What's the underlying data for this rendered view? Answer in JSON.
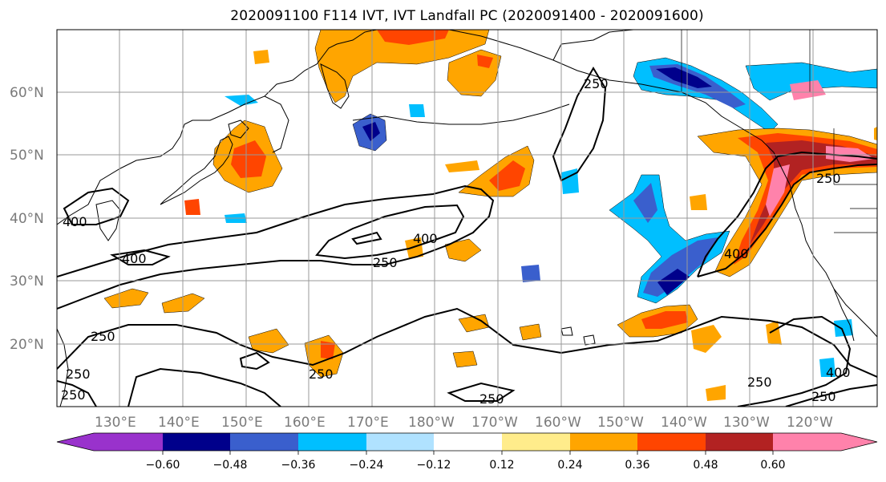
{
  "title": "2020091100 F114 IVT, IVT Landfall PC (2020091400 - 2020091600)",
  "latitude_labels": [
    "60°N",
    "50°N",
    "40°N",
    "30°N",
    "20°N"
  ],
  "longitude_labels": [
    "130°E",
    "140°E",
    "150°E",
    "160°E",
    "170°E",
    "180°W",
    "170°W",
    "160°W",
    "150°W",
    "140°W",
    "130°W",
    "120°W"
  ],
  "contour_labels": [
    "250",
    "400",
    "400",
    "250",
    "400",
    "250",
    "250",
    "250",
    "400",
    "250",
    "250",
    "250",
    "400",
    "250",
    "250"
  ],
  "colorbar": {
    "ticks": [
      "−0.60",
      "−0.48",
      "−0.36",
      "−0.24",
      "−0.12",
      "0.12",
      "0.24",
      "0.36",
      "0.48",
      "0.60"
    ],
    "colors": [
      "#9932cc",
      "#00008b",
      "#3a5fcd",
      "#00bfff",
      "#b0e2ff",
      "#ffffff",
      "#ffec8b",
      "#ffa500",
      "#ff4500",
      "#b22222",
      "#ff82ab"
    ]
  },
  "colors": {
    "purple": "#9932cc",
    "navy": "#00008b",
    "royal_blue": "#3a5fcd",
    "deep_sky_blue": "#00bfff",
    "light_sky_blue": "#b0e2ff",
    "white": "#ffffff",
    "light_yellow": "#ffec8b",
    "orange": "#ffa500",
    "red_orange": "#ff4500",
    "firebrick": "#b22222",
    "pink": "#ff82ab"
  }
}
